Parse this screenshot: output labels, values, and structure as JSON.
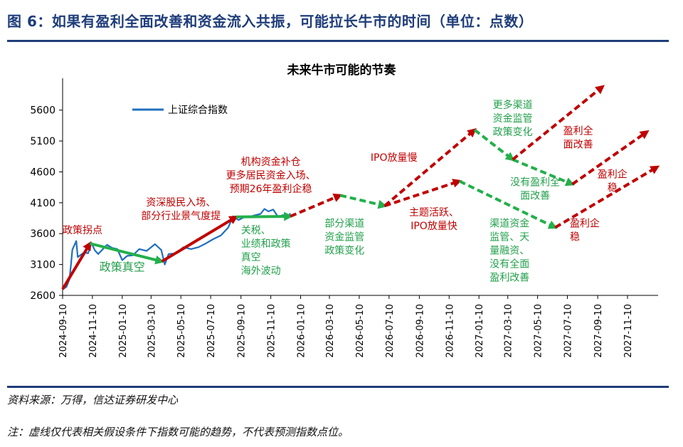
{
  "figure": {
    "title": "图 6：如果有盈利全面改善和资金流入共振，可能拉长牛市的时间（单位：点数）",
    "source": "资料来源：万得，信达证券研发中心",
    "note": "注：虚线仅代表相关假设条件下指数可能的趋势，不代表预测指数点位。"
  },
  "colors": {
    "index_line": "#1f6fbf",
    "red_arrow": "#c00000",
    "green_arrow": "#22b04b",
    "red_text": "#c00000",
    "green_text": "#22a04b",
    "title": "#1f3d7a"
  },
  "chart_data": {
    "type": "line",
    "title": "未来牛市可能的节奏",
    "ylim": [
      2600,
      6000
    ],
    "yticks": [
      2600,
      3100,
      3600,
      4100,
      4600,
      5100,
      5600
    ],
    "xticks": [
      "2024-09-10",
      "2024-11-10",
      "2025-01-10",
      "2025-03-10",
      "2025-05-10",
      "2025-07-10",
      "2025-09-10",
      "2025-11-10",
      "2026-01-10",
      "2026-03-10",
      "2026-05-10",
      "2026-07-10",
      "2026-09-10",
      "2026-11-10",
      "2027-01-10",
      "2027-03-10",
      "2027-05-10",
      "2027-07-10",
      "2027-09-10",
      "2027-11-10"
    ],
    "legend": {
      "label": "上证综合指数",
      "position": "top-left"
    },
    "series": [
      {
        "name": "上证综合指数",
        "points": [
          [
            "2024-09-10",
            2700
          ],
          [
            "2024-09-18",
            2740
          ],
          [
            "2024-09-24",
            2860
          ],
          [
            "2024-09-27",
            3090
          ],
          [
            "2024-09-30",
            3340
          ],
          [
            "2024-10-08",
            3480
          ],
          [
            "2024-10-11",
            3220
          ],
          [
            "2024-10-18",
            3260
          ],
          [
            "2024-10-25",
            3300
          ],
          [
            "2024-11-01",
            3280
          ],
          [
            "2024-11-08",
            3450
          ],
          [
            "2024-11-15",
            3330
          ],
          [
            "2024-11-22",
            3270
          ],
          [
            "2024-11-29",
            3330
          ],
          [
            "2024-12-10",
            3420
          ],
          [
            "2024-12-20",
            3370
          ],
          [
            "2024-12-31",
            3350
          ],
          [
            "2025-01-10",
            3170
          ],
          [
            "2025-01-20",
            3240
          ],
          [
            "2025-02-01",
            3250
          ],
          [
            "2025-02-14",
            3350
          ],
          [
            "2025-03-01",
            3320
          ],
          [
            "2025-03-18",
            3430
          ],
          [
            "2025-03-31",
            3335
          ],
          [
            "2025-04-07",
            3100
          ],
          [
            "2025-04-15",
            3270
          ],
          [
            "2025-04-30",
            3280
          ],
          [
            "2025-05-15",
            3380
          ],
          [
            "2025-05-31",
            3350
          ],
          [
            "2025-06-15",
            3380
          ],
          [
            "2025-06-30",
            3440
          ],
          [
            "2025-07-15",
            3510
          ],
          [
            "2025-07-31",
            3570
          ],
          [
            "2025-08-15",
            3700
          ],
          [
            "2025-08-25",
            3880
          ],
          [
            "2025-09-05",
            3820
          ],
          [
            "2025-09-15",
            3860
          ],
          [
            "2025-09-30",
            3880
          ],
          [
            "2025-10-10",
            3900
          ],
          [
            "2025-10-20",
            3920
          ],
          [
            "2025-10-28",
            4000
          ],
          [
            "2025-11-05",
            3960
          ],
          [
            "2025-11-15",
            3990
          ],
          [
            "2025-11-25",
            3870
          ],
          [
            "2025-12-05",
            3900
          ],
          [
            "2025-12-15",
            3870
          ],
          [
            "2025-12-20",
            3930
          ]
        ]
      }
    ],
    "arrows": [
      {
        "color": "red",
        "style": "solid",
        "from": [
          "2024-09-10",
          2700
        ],
        "to": [
          "2024-11-05",
          3440
        ]
      },
      {
        "color": "green",
        "style": "solid",
        "from": [
          "2024-11-05",
          3440
        ],
        "to": [
          "2025-04-01",
          3150
        ]
      },
      {
        "color": "red",
        "style": "solid",
        "from": [
          "2025-04-01",
          3150
        ],
        "to": [
          "2025-08-31",
          3870
        ]
      },
      {
        "color": "green",
        "style": "solid",
        "from": [
          "2025-08-31",
          3870
        ],
        "to": [
          "2025-12-20",
          3880
        ]
      },
      {
        "color": "red",
        "style": "dashed",
        "from": [
          "2025-12-20",
          3880
        ],
        "to": [
          "2026-04-01",
          4220
        ]
      },
      {
        "color": "green",
        "style": "dashed",
        "from": [
          "2026-04-01",
          4220
        ],
        "to": [
          "2026-07-01",
          4050
        ]
      },
      {
        "color": "red",
        "style": "dashed",
        "from": [
          "2026-07-01",
          4050
        ],
        "to": [
          "2027-01-01",
          5280
        ]
      },
      {
        "color": "green",
        "style": "dashed",
        "from": [
          "2027-01-01",
          5280
        ],
        "to": [
          "2027-03-20",
          4800
        ]
      },
      {
        "color": "green",
        "style": "dashed",
        "from": [
          "2027-03-20",
          4800
        ],
        "to": [
          "2027-07-20",
          4400
        ]
      },
      {
        "color": "red",
        "style": "dashed",
        "from": [
          "2027-07-20",
          4400
        ],
        "to": [
          "2027-12-20",
          5250
        ]
      },
      {
        "color": "red",
        "style": "dashed",
        "from": [
          "2027-03-20",
          4800
        ],
        "to": [
          "2027-09-20",
          5980
        ]
      },
      {
        "color": "red",
        "style": "dashed",
        "from": [
          "2026-07-01",
          4050
        ],
        "to": [
          "2026-12-01",
          4450
        ]
      },
      {
        "color": "green",
        "style": "dashed",
        "from": [
          "2026-12-01",
          4450
        ],
        "to": [
          "2027-06-15",
          3700
        ]
      },
      {
        "color": "red",
        "style": "dashed",
        "from": [
          "2027-06-15",
          3700
        ],
        "to": [
          "2028-01-10",
          4680
        ]
      }
    ],
    "annotations": [
      {
        "color": "red",
        "lines": [
          "政策拐点"
        ],
        "at": [
          "2024-09-10",
          3600
        ],
        "anchor": "start"
      },
      {
        "color": "green",
        "lines": [
          "政策真空"
        ],
        "at": [
          "2025-01-10",
          3000
        ],
        "anchor": "middle",
        "size": 16
      },
      {
        "color": "red",
        "lines": [
          "资深股民入场、",
          "部分行业景气度提"
        ],
        "at": [
          "2025-05-10",
          4050
        ],
        "anchor": "middle"
      },
      {
        "color": "green",
        "lines": [
          "关税、",
          "业绩和政策",
          "真空",
          "海外波动"
        ],
        "at": [
          "2025-09-10",
          3600
        ],
        "anchor": "start"
      },
      {
        "color": "red",
        "lines": [
          "机构资金补仓",
          "更多居民资金入场、",
          "预期26年盈利企稳"
        ],
        "at": [
          "2025-11-10",
          4710
        ],
        "anchor": "middle"
      },
      {
        "color": "green",
        "lines": [
          "部分渠道",
          "资金监管",
          "政策变化"
        ],
        "at": [
          "2026-04-10",
          3710
        ],
        "anchor": "middle"
      },
      {
        "color": "red",
        "lines": [
          "IPO放量慢"
        ],
        "at": [
          "2026-07-20",
          4780
        ],
        "anchor": "middle"
      },
      {
        "color": "red",
        "lines": [
          "主题活跃、",
          "IPO放量快"
        ],
        "at": [
          "2026-10-10",
          3890
        ],
        "anchor": "middle"
      },
      {
        "color": "green",
        "lines": [
          "更多渠道",
          "资金监管",
          "政策变化"
        ],
        "at": [
          "2027-03-20",
          5630
        ],
        "anchor": "middle"
      },
      {
        "color": "red",
        "lines": [
          "盈利全",
          "面改善"
        ],
        "at": [
          "2027-08-01",
          5210
        ],
        "anchor": "middle"
      },
      {
        "color": "green",
        "lines": [
          "没有盈利全",
          "面改善"
        ],
        "at": [
          "2027-05-05",
          4380
        ],
        "anchor": "middle"
      },
      {
        "color": "red",
        "lines": [
          "盈利企",
          "稳"
        ],
        "at": [
          "2027-10-10",
          4510
        ],
        "anchor": "middle"
      },
      {
        "color": "green",
        "lines": [
          "渠道资金",
          "监管、天",
          "量融资、",
          "没有全面",
          "盈利改善"
        ],
        "at": [
          "2027-02-01",
          3710
        ],
        "anchor": "start"
      },
      {
        "color": "red",
        "lines": [
          "盈利企",
          "稳"
        ],
        "at": [
          "2027-07-15",
          3710
        ],
        "anchor": "start"
      }
    ]
  }
}
